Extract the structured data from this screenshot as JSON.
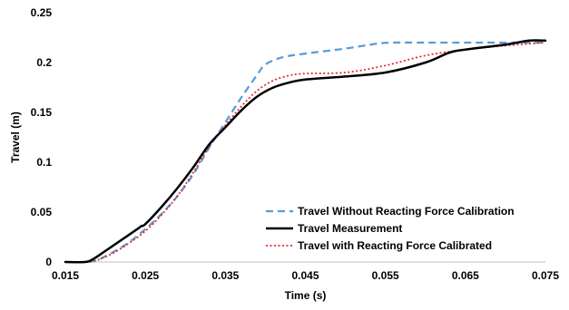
{
  "chart_data": {
    "type": "line",
    "title": "",
    "xlabel": "Time (s)",
    "ylabel": "Travel (m)",
    "xlim": [
      0.015,
      0.075
    ],
    "ylim": [
      0,
      0.25
    ],
    "x_ticks": [
      "0.015",
      "0.025",
      "0.035",
      "0.045",
      "0.055",
      "0.065",
      "0.075"
    ],
    "y_ticks": [
      "0",
      "0.05",
      "0.1",
      "0.15",
      "0.2",
      "0.25"
    ],
    "grid": false,
    "legend_position": "bottom-right",
    "series": [
      {
        "name": "Travel Without Reacting Force Calibration",
        "color": "#5b9bd5",
        "style": "dashed",
        "x": [
          0.015,
          0.0175,
          0.019,
          0.021,
          0.023,
          0.025,
          0.027,
          0.029,
          0.031,
          0.033,
          0.035,
          0.037,
          0.039,
          0.04,
          0.042,
          0.045,
          0.05,
          0.054,
          0.056,
          0.06,
          0.065,
          0.07,
          0.075
        ],
        "y": [
          0,
          0,
          0.002,
          0.01,
          0.02,
          0.033,
          0.048,
          0.066,
          0.088,
          0.115,
          0.14,
          0.165,
          0.188,
          0.198,
          0.205,
          0.209,
          0.214,
          0.219,
          0.22,
          0.22,
          0.22,
          0.22,
          0.22
        ]
      },
      {
        "name": "Travel Measurement",
        "color": "#000000",
        "style": "solid",
        "x": [
          0.015,
          0.0175,
          0.0185,
          0.02,
          0.022,
          0.024,
          0.0245,
          0.025,
          0.027,
          0.029,
          0.031,
          0.033,
          0.035,
          0.037,
          0.039,
          0.041,
          0.043,
          0.045,
          0.05,
          0.055,
          0.06,
          0.063,
          0.065,
          0.07,
          0.073,
          0.075
        ],
        "y": [
          0,
          0,
          0.003,
          0.011,
          0.022,
          0.033,
          0.036,
          0.038,
          0.055,
          0.074,
          0.095,
          0.118,
          0.135,
          0.152,
          0.166,
          0.175,
          0.18,
          0.183,
          0.186,
          0.19,
          0.2,
          0.21,
          0.213,
          0.218,
          0.222,
          0.222
        ]
      },
      {
        "name": "Travel with Reacting Force Calibrated",
        "color": "#e8262b",
        "style": "dotted",
        "x": [
          0.015,
          0.0175,
          0.019,
          0.021,
          0.023,
          0.025,
          0.027,
          0.029,
          0.031,
          0.033,
          0.035,
          0.037,
          0.039,
          0.041,
          0.043,
          0.045,
          0.05,
          0.055,
          0.06,
          0.065,
          0.07,
          0.075
        ],
        "y": [
          0,
          0,
          0.002,
          0.009,
          0.019,
          0.031,
          0.047,
          0.066,
          0.09,
          0.116,
          0.137,
          0.156,
          0.172,
          0.182,
          0.187,
          0.189,
          0.19,
          0.197,
          0.207,
          0.213,
          0.217,
          0.22
        ]
      }
    ]
  }
}
